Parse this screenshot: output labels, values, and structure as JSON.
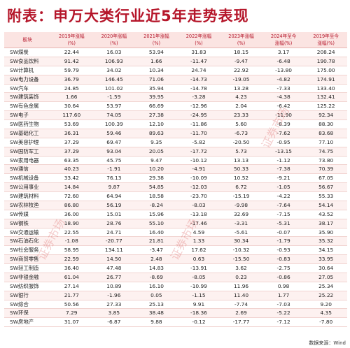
{
  "title": {
    "prefix": "附表：",
    "main": "申万大类行业近5年走势表现"
  },
  "footer": {
    "source": "数据来源：Wind"
  },
  "watermark": {
    "text": "证券市场"
  },
  "table": {
    "headers": [
      {
        "line1": "板块",
        "line2": ""
      },
      {
        "line1": "2019年涨幅",
        "line2": "(%)"
      },
      {
        "line1": "2020年涨幅",
        "line2": "(%)"
      },
      {
        "line1": "2021年涨幅",
        "line2": "(%)"
      },
      {
        "line1": "2022年涨幅",
        "line2": "(%)"
      },
      {
        "line1": "2023年涨幅",
        "line2": "(%)"
      },
      {
        "line1": "2024年至今",
        "line2": "涨幅(%)"
      },
      {
        "line1": "2019年至今",
        "line2": "涨幅(%)"
      }
    ],
    "rows": [
      {
        "name": "SW煤炭",
        "v2019": "22.44",
        "v2020": "16.03",
        "v2021": "53.94",
        "v2022": "31.83",
        "v2023": "18.15",
        "v2024": "3.17",
        "vtotal": "208.24"
      },
      {
        "name": "SW食品饮料",
        "v2019": "91.42",
        "v2020": "106.93",
        "v2021": "1.66",
        "v2022": "-11.47",
        "v2023": "-9.47",
        "v2024": "-6.48",
        "vtotal": "190.78"
      },
      {
        "name": "SW计算机",
        "v2019": "59.79",
        "v2020": "34.02",
        "v2021": "10.34",
        "v2022": "24.74",
        "v2023": "22.92",
        "v2024": "-13.80",
        "vtotal": "175.00"
      },
      {
        "name": "SW电力设备",
        "v2019": "36.79",
        "v2020": "146.45",
        "v2021": "71.06",
        "v2022": "-14.73",
        "v2023": "-19.05",
        "v2024": "-4.82",
        "vtotal": "174.91"
      },
      {
        "name": "SW汽车",
        "v2019": "24.85",
        "v2020": "101.02",
        "v2021": "35.94",
        "v2022": "-14.78",
        "v2023": "13.28",
        "v2024": "-7.33",
        "vtotal": "133.40"
      },
      {
        "name": "SW建筑装饰",
        "v2019": "1.66",
        "v2020": "-1.59",
        "v2021": "39.95",
        "v2022": "-3.28",
        "v2023": "4.23",
        "v2024": "-4.38",
        "vtotal": "132.41"
      },
      {
        "name": "SW有色金属",
        "v2019": "30.64",
        "v2020": "53.97",
        "v2021": "66.69",
        "v2022": "-12.96",
        "v2023": "2.04",
        "v2024": "-6.42",
        "vtotal": "125.22"
      },
      {
        "name": "SW电子",
        "v2019": "117.60",
        "v2020": "74.05",
        "v2021": "27.38",
        "v2022": "-24.95",
        "v2023": "23.33",
        "v2024": "-11.90",
        "vtotal": "92.34"
      },
      {
        "name": "SW医药生物",
        "v2019": "53.69",
        "v2020": "100.39",
        "v2021": "12.10",
        "v2022": "-11.86",
        "v2023": "5.60",
        "v2024": "-8.39",
        "vtotal": "88.30"
      },
      {
        "name": "SW基础化工",
        "v2019": "36.31",
        "v2020": "59.46",
        "v2021": "89.63",
        "v2022": "-11.70",
        "v2023": "-6.73",
        "v2024": "-7.62",
        "vtotal": "83.68"
      },
      {
        "name": "SW美容护理",
        "v2019": "37.29",
        "v2020": "69.47",
        "v2021": "9.35",
        "v2022": "-5.82",
        "v2023": "-20.50",
        "v2024": "-0.95",
        "vtotal": "77.10"
      },
      {
        "name": "SW国防军工",
        "v2019": "37.29",
        "v2020": "93.04",
        "v2021": "20.05",
        "v2022": "-17.72",
        "v2023": "5.73",
        "v2024": "-13.15",
        "vtotal": "74.75"
      },
      {
        "name": "SW家用电器",
        "v2019": "63.35",
        "v2020": "45.75",
        "v2021": "9.47",
        "v2022": "-10.12",
        "v2023": "13.13",
        "v2024": "-1.12",
        "vtotal": "73.80"
      },
      {
        "name": "SW通信",
        "v2019": "40.23",
        "v2020": "-1.91",
        "v2021": "10.20",
        "v2022": "-4.91",
        "v2023": "50.33",
        "v2024": "-7.38",
        "vtotal": "70.39"
      },
      {
        "name": "SW机械设备",
        "v2019": "33.42",
        "v2020": "76.13",
        "v2021": "29.38",
        "v2022": "-10.09",
        "v2023": "10.52",
        "v2024": "-9.21",
        "vtotal": "67.05"
      },
      {
        "name": "SW公用事业",
        "v2019": "14.84",
        "v2020": "9.87",
        "v2021": "54.85",
        "v2022": "-12.03",
        "v2023": "6.72",
        "v2024": "-1.05",
        "vtotal": "56.67"
      },
      {
        "name": "SW建筑材料",
        "v2019": "72.60",
        "v2020": "64.94",
        "v2021": "18.58",
        "v2022": "-23.70",
        "v2023": "-15.19",
        "v2024": "-4.22",
        "vtotal": "55.33"
      },
      {
        "name": "SW农林牧渔",
        "v2019": "86.80",
        "v2020": "56.19",
        "v2021": "-8.24",
        "v2022": "-8.03",
        "v2023": "-9.98",
        "v2024": "-7.64",
        "vtotal": "54.14"
      },
      {
        "name": "SW传媒",
        "v2019": "36.00",
        "v2020": "15.01",
        "v2021": "15.96",
        "v2022": "-13.18",
        "v2023": "32.69",
        "v2024": "-7.15",
        "vtotal": "43.52"
      },
      {
        "name": "SW钢铁",
        "v2019": "18.90",
        "v2020": "28.76",
        "v2021": "55.10",
        "v2022": "-17.46",
        "v2023": "-3.31",
        "v2024": "-5.31",
        "vtotal": "38.17"
      },
      {
        "name": "SW交通运输",
        "v2019": "22.55",
        "v2020": "24.71",
        "v2021": "16.40",
        "v2022": "4.59",
        "v2023": "-5.61",
        "v2024": "-0.07",
        "vtotal": "35.90"
      },
      {
        "name": "SW石油石化",
        "v2019": "-1.08",
        "v2020": "-20.77",
        "v2021": "21.81",
        "v2022": "1.33",
        "v2023": "30.34",
        "v2024": "-1.79",
        "vtotal": "35.32"
      },
      {
        "name": "SW社会服务",
        "v2019": "58.95",
        "v2020": "134.11",
        "v2021": "-3.47",
        "v2022": "17.62",
        "v2023": "-10.32",
        "v2024": "-0.93",
        "vtotal": "34.15"
      },
      {
        "name": "SW商贸零售",
        "v2019": "22.59",
        "v2020": "14.50",
        "v2021": "2.48",
        "v2022": "0.63",
        "v2023": "-15.50",
        "v2024": "-0.83",
        "vtotal": "33.95"
      },
      {
        "name": "SW轻工制造",
        "v2019": "36.40",
        "v2020": "47.48",
        "v2021": "14.83",
        "v2022": "-13.91",
        "v2023": "3.62",
        "v2024": "-2.75",
        "vtotal": "30.64"
      },
      {
        "name": "SW非银金融",
        "v2019": "61.04",
        "v2020": "26.77",
        "v2021": "-8.69",
        "v2022": "-8.05",
        "v2023": "0.23",
        "v2024": "-0.86",
        "vtotal": "27.05"
      },
      {
        "name": "SW纺织服饰",
        "v2019": "27.14",
        "v2020": "10.89",
        "v2021": "16.10",
        "v2022": "-10.99",
        "v2023": "11.96",
        "v2024": "0.98",
        "vtotal": "25.34"
      },
      {
        "name": "SW银行",
        "v2019": "21.77",
        "v2020": "-1.96",
        "v2021": "0.05",
        "v2022": "-1.15",
        "v2023": "11.40",
        "v2024": "1.77",
        "vtotal": "25.22"
      },
      {
        "name": "SW综合",
        "v2019": "50.56",
        "v2020": "27.33",
        "v2021": "25.13",
        "v2022": "9.91",
        "v2023": "-7.74",
        "v2024": "-7.03",
        "vtotal": "9.20"
      },
      {
        "name": "SW环保",
        "v2019": "7.29",
        "v2020": "3.85",
        "v2021": "38.48",
        "v2022": "-18.36",
        "v2023": "2.69",
        "v2024": "-5.22",
        "vtotal": "4.35"
      },
      {
        "name": "SW房地产",
        "v2019": "31.07",
        "v2020": "-6.87",
        "v2021": "9.88",
        "v2022": "-0.12",
        "v2023": "-17.77",
        "v2024": "-7.12",
        "vtotal": "-7.80"
      }
    ]
  }
}
